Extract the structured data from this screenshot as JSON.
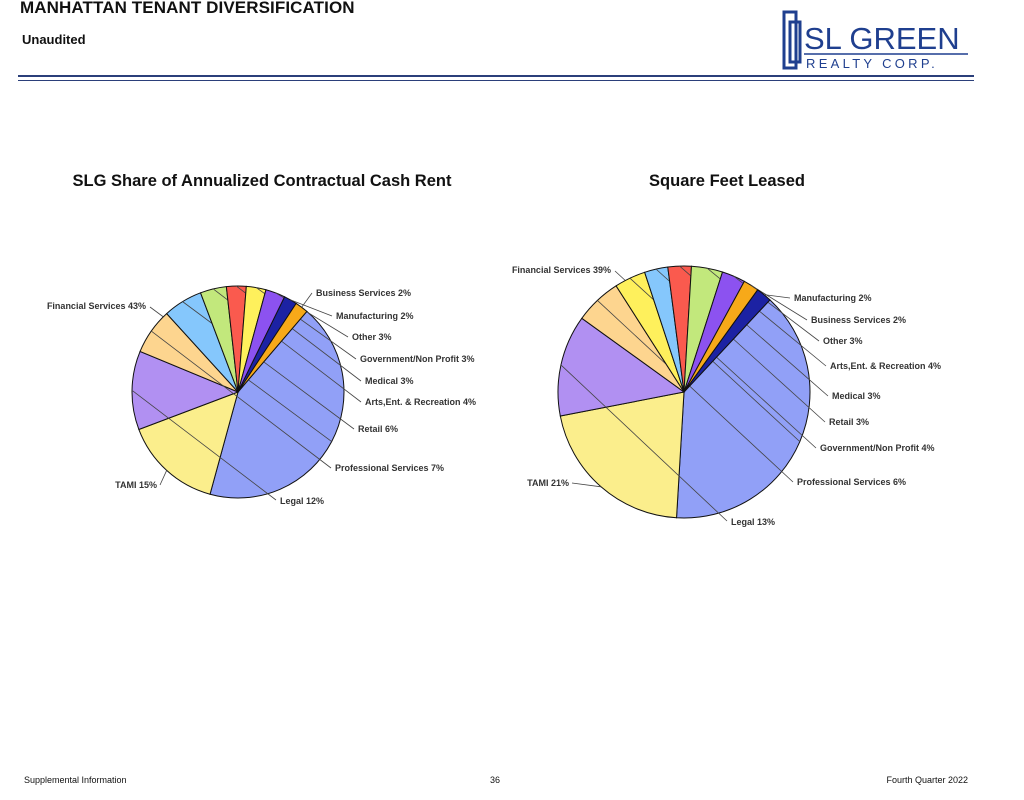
{
  "header": {
    "title": "MANHATTAN TENANT DIVERSIFICATION",
    "subtitle": "Unaudited",
    "logo": {
      "line1": "SL GREEN",
      "line2": "REALTY CORP."
    }
  },
  "footer": {
    "left": "Supplemental Information",
    "center": "36",
    "right": "Fourth Quarter 2022"
  },
  "colors": {
    "Financial Services": "#91a0f7",
    "TAMI": "#fbee8c",
    "Legal": "#b190f2",
    "Professional Services": "#fdd58f",
    "Retail": "#85c7fc",
    "Arts,Ent. & Recreation": "#c2e87c",
    "Medical": "#fa5a4e",
    "Government/Non Profit": "#fef05c",
    "Other": "#8c52f0",
    "Manufacturing": "#1c22a3",
    "Business Services": "#f7a919"
  },
  "chart_data": [
    {
      "type": "pie",
      "title": "SLG Share of Annualized Contractual Cash Rent",
      "slices": [
        {
          "label": "Financial Services",
          "value": 43,
          "text": "Financial Services 43%"
        },
        {
          "label": "TAMI",
          "value": 15,
          "text": "TAMI 15%"
        },
        {
          "label": "Legal",
          "value": 12,
          "text": "Legal 12%"
        },
        {
          "label": "Professional Services",
          "value": 7,
          "text": "Professional Services 7%"
        },
        {
          "label": "Retail",
          "value": 6,
          "text": "Retail 6%"
        },
        {
          "label": "Arts,Ent. & Recreation",
          "value": 4,
          "text": "Arts,Ent. & Recreation 4%"
        },
        {
          "label": "Medical",
          "value": 3,
          "text": "Medical 3%"
        },
        {
          "label": "Government/Non Profit",
          "value": 3,
          "text": "Government/Non Profit 3%"
        },
        {
          "label": "Other",
          "value": 3,
          "text": "Other 3%"
        },
        {
          "label": "Manufacturing",
          "value": 2,
          "text": "Manufacturing 2%"
        },
        {
          "label": "Business Services",
          "value": 2,
          "text": "Business Services 2%"
        }
      ]
    },
    {
      "type": "pie",
      "title": "Square Feet Leased",
      "slices": [
        {
          "label": "Financial Services",
          "value": 39,
          "text": "Financial Services 39%"
        },
        {
          "label": "TAMI",
          "value": 21,
          "text": "TAMI 21%"
        },
        {
          "label": "Legal",
          "value": 13,
          "text": "Legal 13%"
        },
        {
          "label": "Professional Services",
          "value": 6,
          "text": "Professional Services 6%"
        },
        {
          "label": "Government/Non Profit",
          "value": 4,
          "text": "Government/Non Profit 4%"
        },
        {
          "label": "Retail",
          "value": 3,
          "text": "Retail 3%"
        },
        {
          "label": "Medical",
          "value": 3,
          "text": "Medical 3%"
        },
        {
          "label": "Arts,Ent. & Recreation",
          "value": 4,
          "text": "Arts,Ent. & Recreation 4%"
        },
        {
          "label": "Other",
          "value": 3,
          "text": "Other 3%"
        },
        {
          "label": "Business Services",
          "value": 2,
          "text": "Business Services 2%"
        },
        {
          "label": "Manufacturing",
          "value": 2,
          "text": "Manufacturing 2%"
        }
      ]
    }
  ]
}
